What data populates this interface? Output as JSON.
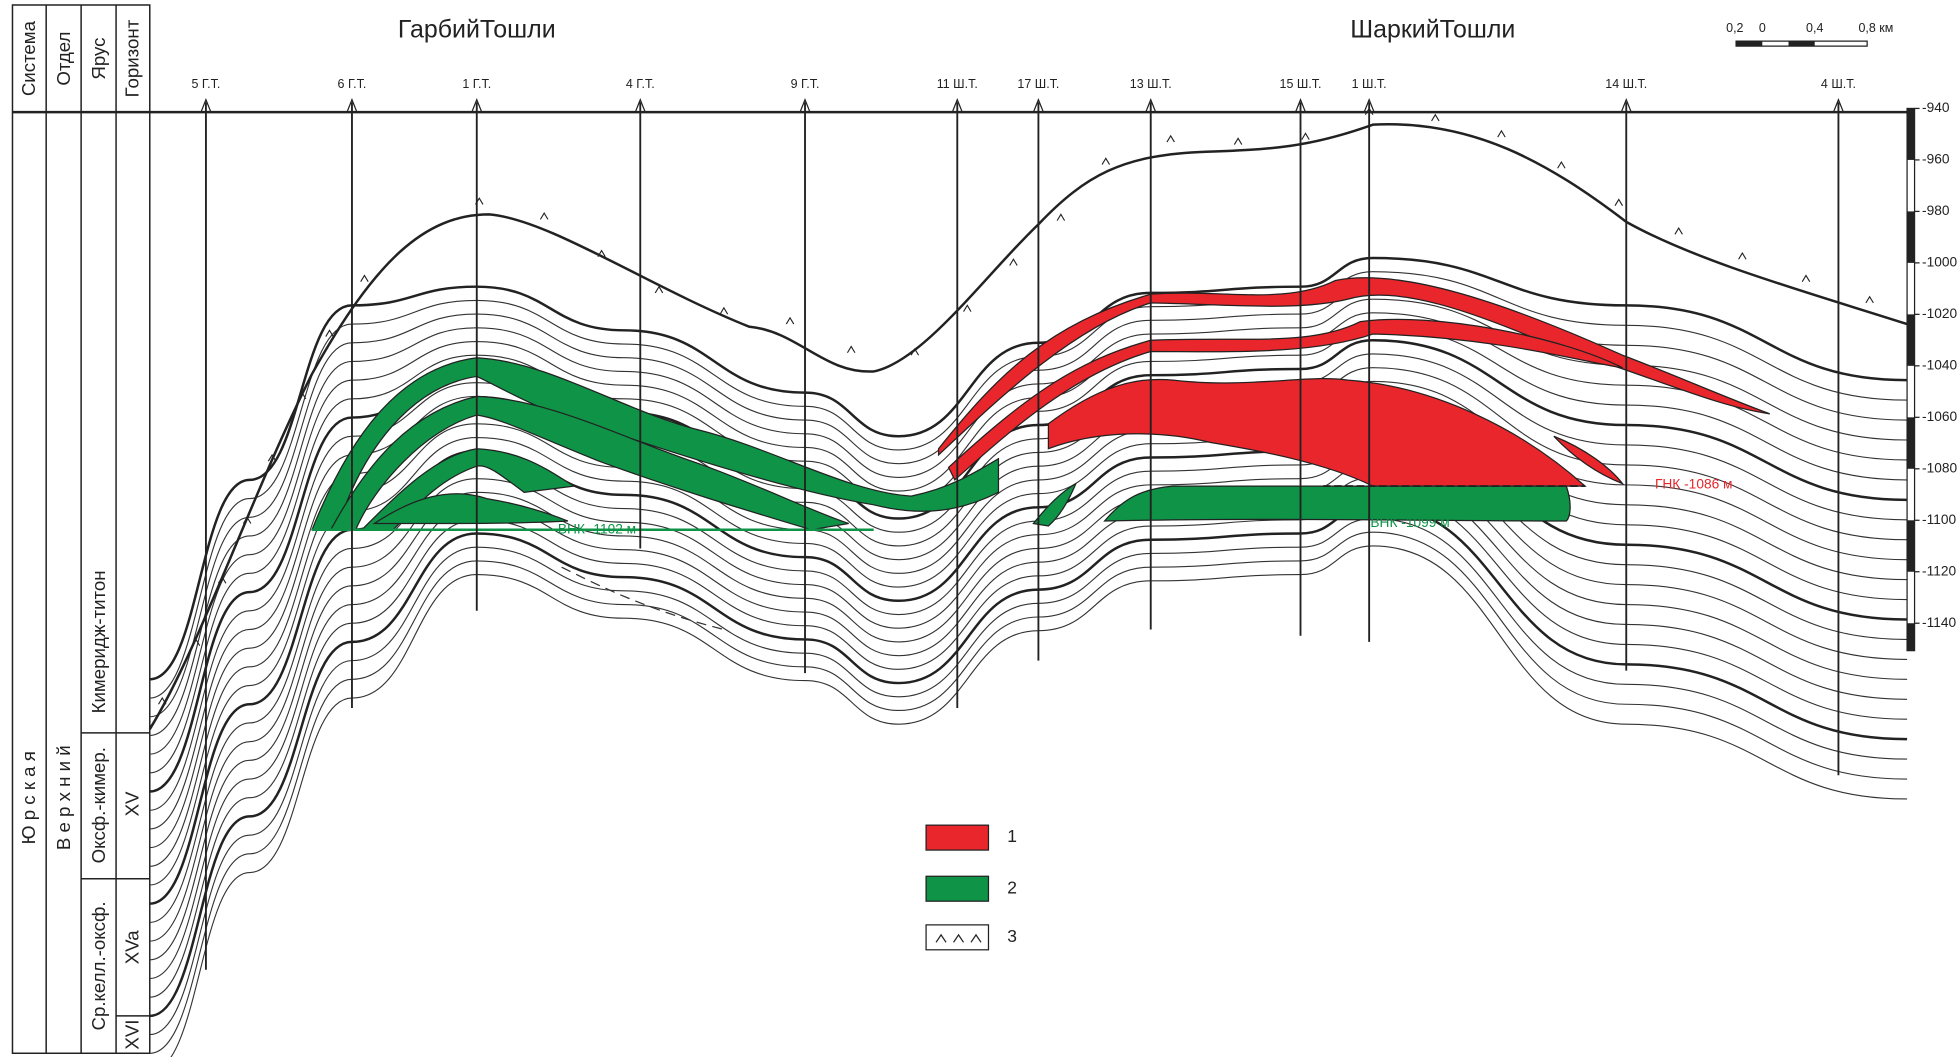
{
  "header": {
    "west_field": "ГарбийТошли",
    "east_field": "ШаркийТошли"
  },
  "scale_bar": {
    "labels": [
      "0,2",
      "0",
      "0,4",
      "0,8 км"
    ]
  },
  "stratigraphy": {
    "headers": [
      "Система",
      "Отдел",
      "Ярус",
      "Горизонт"
    ],
    "system": "Ю р с к а я",
    "series": "В е р х н и й",
    "stages": [
      "Кимеридж-титон",
      "Оксф.-кимер.",
      "Ср.келл.-оксф."
    ],
    "horizons": [
      "XV",
      "XVa",
      "XVI"
    ]
  },
  "wells": [
    {
      "name": "5 Г.Т."
    },
    {
      "name": "6 Г.Т."
    },
    {
      "name": "1 Г.Т."
    },
    {
      "name": "4 Г.Т."
    },
    {
      "name": "9 Г.Т."
    },
    {
      "name": "11 Ш.Т."
    },
    {
      "name": "17 Ш.Т."
    },
    {
      "name": "13 Ш.Т."
    },
    {
      "name": "15 Ш.Т."
    },
    {
      "name": "1 Ш.Т."
    },
    {
      "name": "14 Ш.Т."
    },
    {
      "name": "4 Ш.Т."
    }
  ],
  "depth_scale": [
    -940,
    -960,
    -980,
    -1000,
    -1020,
    -1040,
    -1060,
    -1080,
    -1100,
    -1120,
    -1140
  ],
  "contacts": [
    "ВНК -1102 м",
    "ВНК -1099 м",
    "ГНК -1086 м"
  ],
  "legend": [
    "1",
    "2",
    "3"
  ]
}
